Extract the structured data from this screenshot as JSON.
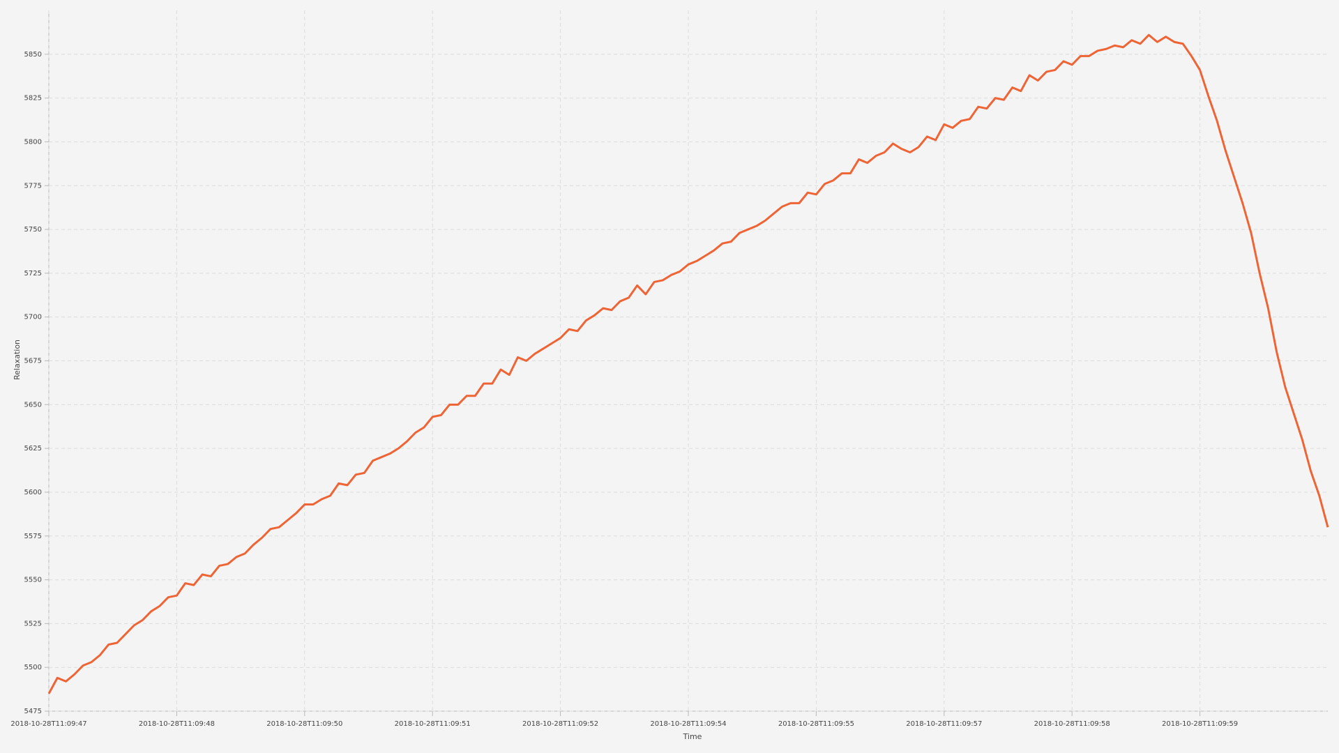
{
  "chart_data": {
    "type": "line",
    "xlabel": "Time",
    "ylabel": "Relaxation",
    "color": "#ee6435",
    "grid": true,
    "x": [
      0,
      1,
      2,
      3,
      4,
      5,
      6,
      7,
      8,
      9,
      10,
      11,
      12,
      13,
      14,
      15,
      16,
      17,
      18,
      19,
      20,
      21,
      22,
      23,
      24,
      25,
      26,
      27,
      28,
      29,
      30,
      31,
      32,
      33,
      34,
      35,
      36,
      37,
      38,
      39,
      40,
      41,
      42,
      43,
      44,
      45,
      46,
      47,
      48,
      49,
      50,
      51,
      52,
      53,
      54,
      55,
      56,
      57,
      58,
      59,
      60,
      61,
      62,
      63,
      64,
      65,
      66,
      67,
      68,
      69,
      70,
      71,
      72,
      73,
      74,
      75,
      76,
      77,
      78,
      79,
      80,
      81,
      82,
      83,
      84,
      85,
      86,
      87,
      88,
      89,
      90,
      91,
      92,
      93,
      94,
      95,
      96,
      97,
      98,
      99,
      100,
      101,
      102,
      103,
      104,
      105,
      106,
      107,
      108,
      109,
      110,
      111,
      112,
      113,
      114,
      115,
      116,
      117,
      118,
      119,
      120,
      121,
      122,
      123,
      124,
      125,
      126,
      127,
      128,
      129,
      130,
      131,
      132,
      133,
      134,
      135,
      136,
      137,
      138,
      139,
      140,
      141,
      142,
      143,
      144,
      145,
      146,
      147,
      148,
      149,
      150
    ],
    "values": [
      5485,
      5494,
      5492,
      5496,
      5501,
      5503,
      5507,
      5513,
      5514,
      5519,
      5524,
      5527,
      5532,
      5535,
      5540,
      5541,
      5548,
      5547,
      5553,
      5552,
      5558,
      5559,
      5563,
      5565,
      5570,
      5574,
      5579,
      5580,
      5584,
      5588,
      5593,
      5593,
      5596,
      5598,
      5605,
      5604,
      5610,
      5611,
      5618,
      5620,
      5622,
      5625,
      5629,
      5634,
      5637,
      5643,
      5644,
      5650,
      5650,
      5655,
      5655,
      5662,
      5662,
      5670,
      5667,
      5677,
      5675,
      5679,
      5682,
      5685,
      5688,
      5693,
      5692,
      5698,
      5701,
      5705,
      5704,
      5709,
      5711,
      5718,
      5713,
      5720,
      5721,
      5724,
      5726,
      5730,
      5732,
      5735,
      5738,
      5742,
      5743,
      5748,
      5750,
      5752,
      5755,
      5759,
      5763,
      5765,
      5765,
      5771,
      5770,
      5776,
      5778,
      5782,
      5782,
      5790,
      5788,
      5792,
      5794,
      5799,
      5796,
      5794,
      5797,
      5803,
      5801,
      5810,
      5808,
      5812,
      5813,
      5820,
      5819,
      5825,
      5824,
      5831,
      5829,
      5838,
      5835,
      5840,
      5841,
      5846,
      5844,
      5849,
      5849,
      5852,
      5853,
      5855,
      5854,
      5858,
      5856,
      5861,
      5857,
      5860,
      5857,
      5856,
      5849,
      5841,
      5826,
      5812,
      5795,
      5780,
      5765,
      5748,
      5725,
      5705,
      5680,
      5660,
      5645,
      5630,
      5612,
      5598,
      5580
    ],
    "xlim": [
      0,
      150
    ],
    "xticks": [
      {
        "value": 0,
        "label": "2018-10-28T11:09:47"
      },
      {
        "value": 15,
        "label": "2018-10-28T11:09:48"
      },
      {
        "value": 30,
        "label": "2018-10-28T11:09:50"
      },
      {
        "value": 45,
        "label": "2018-10-28T11:09:51"
      },
      {
        "value": 60,
        "label": "2018-10-28T11:09:52"
      },
      {
        "value": 75,
        "label": "2018-10-28T11:09:54"
      },
      {
        "value": 90,
        "label": "2018-10-28T11:09:55"
      },
      {
        "value": 105,
        "label": "2018-10-28T11:09:57"
      },
      {
        "value": 120,
        "label": "2018-10-28T11:09:58"
      },
      {
        "value": 135,
        "label": "2018-10-28T11:09:59"
      }
    ],
    "ylim": [
      5475,
      5875
    ],
    "yticks": [
      5475,
      5500,
      5525,
      5550,
      5575,
      5600,
      5625,
      5650,
      5675,
      5700,
      5725,
      5750,
      5775,
      5800,
      5825,
      5850
    ]
  }
}
